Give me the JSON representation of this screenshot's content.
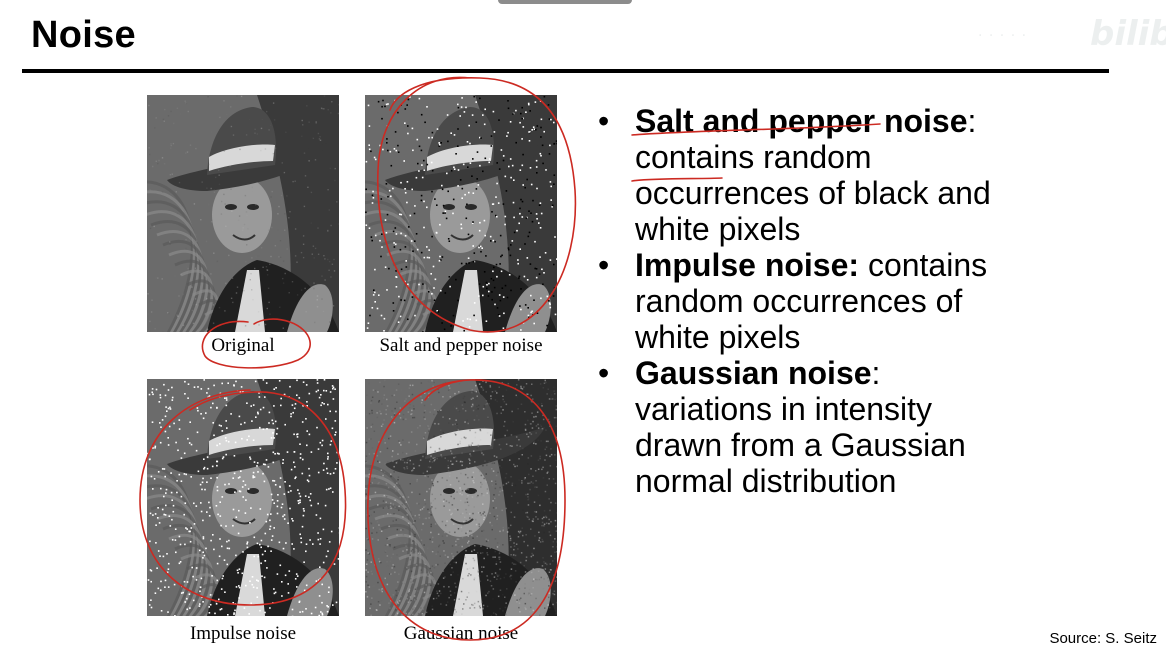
{
  "slide": {
    "title": "Noise",
    "source": "Source: S. Seitz",
    "watermark_text": "bilibili"
  },
  "figures": [
    {
      "caption": "Original",
      "noise": "none"
    },
    {
      "caption": "Salt and pepper noise",
      "noise": "salt-and-pepper"
    },
    {
      "caption": "Impulse noise",
      "noise": "impulse"
    },
    {
      "caption": "Gaussian noise",
      "noise": "gaussian"
    }
  ],
  "bullets": [
    {
      "term": "Salt and pepper noise",
      "rest": ": contains random occurrences of black and white pixels"
    },
    {
      "term": "Impulse noise:",
      "rest": " contains random occurrences of white pixels"
    },
    {
      "term": "Gaussian noise",
      "rest": ": variations in intensity drawn from a Gaussian normal distribution"
    }
  ],
  "colors": {
    "annotation_ink": "#cc2a22",
    "rule": "#000000"
  }
}
